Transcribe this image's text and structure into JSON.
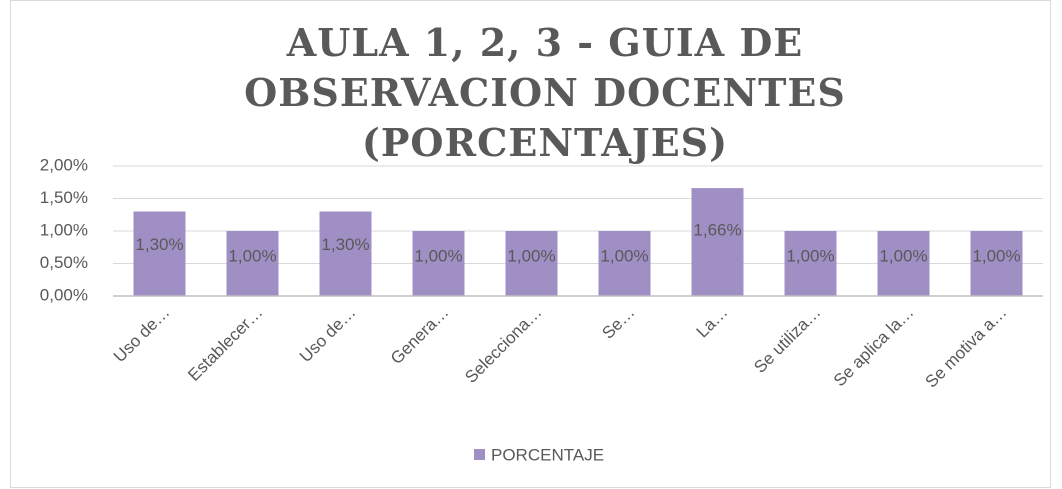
{
  "chart_data": {
    "type": "bar",
    "title": "AULA 1, 2, 3 - GUIA DE OBSERVACION DOCENTES (PORCENTAJES)",
    "categories": [
      "Uso de…",
      "Establecer…",
      "Uso de…",
      "Genera…",
      "Selecciona…",
      "Se…",
      "La…",
      "Se utiliza…",
      "Se aplica la…",
      "Se motiva a…"
    ],
    "series": [
      {
        "name": "PORCENTAJE",
        "color": "#a08fc4",
        "values": [
          1.3,
          1.0,
          1.3,
          1.0,
          1.0,
          1.0,
          1.66,
          1.0,
          1.0,
          1.0
        ],
        "value_labels": [
          "1,30%",
          "1,00%",
          "1,30%",
          "1,00%",
          "1,00%",
          "1,00%",
          "1,66%",
          "1,00%",
          "1,00%",
          "1,00%"
        ]
      }
    ],
    "ylim": [
      0,
      2
    ],
    "yticks": [
      {
        "value": 0,
        "label": "0,00%"
      },
      {
        "value": 0.5,
        "label": "0,50%"
      },
      {
        "value": 1,
        "label": "1,00%"
      },
      {
        "value": 1.5,
        "label": "1,50%"
      },
      {
        "value": 2,
        "label": "2,00%"
      }
    ],
    "grid": true,
    "legend": "bottom"
  }
}
